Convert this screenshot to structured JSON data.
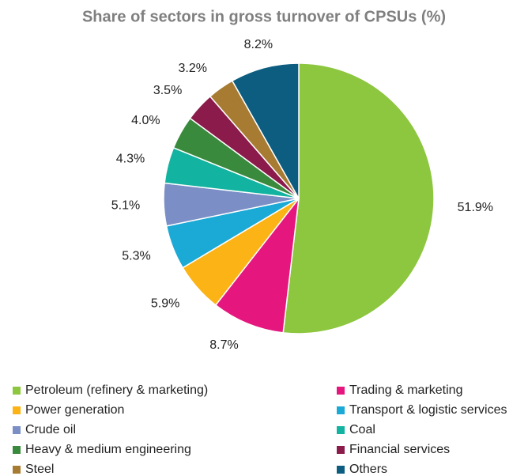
{
  "chart_data": {
    "type": "pie",
    "title": "Share of sectors in gross turnover of CPSUs (%)",
    "categories": [
      "Petroleum (refinery & marketing)",
      "Trading & marketing",
      "Power generation",
      "Transport & logistic services",
      "Crude oil",
      "Coal",
      "Heavy & medium engineering",
      "Financial services",
      "Steel",
      "Others"
    ],
    "values": [
      51.9,
      8.7,
      5.9,
      5.3,
      5.1,
      4.3,
      4.0,
      3.5,
      3.2,
      8.2
    ],
    "value_labels": [
      "51.9%",
      "8.7%",
      "5.9%",
      "5.3%",
      "5.1%",
      "4.3%",
      "4.0%",
      "3.5%",
      "3.2%",
      "8.2%"
    ],
    "colors": [
      "#8dc63f",
      "#e5177e",
      "#fbb316",
      "#1ba9d6",
      "#7b8fc6",
      "#12b3a0",
      "#3a8a3e",
      "#8a1b4a",
      "#a87b33",
      "#0c5d80"
    ],
    "legend": "bottom"
  }
}
